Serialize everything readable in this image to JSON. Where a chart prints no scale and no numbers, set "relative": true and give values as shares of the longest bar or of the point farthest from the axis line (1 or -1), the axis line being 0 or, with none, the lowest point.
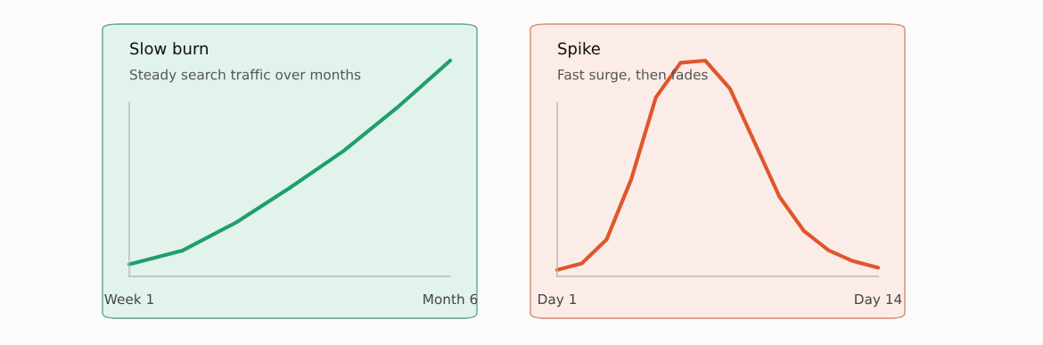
{
  "chart_data": [
    {
      "type": "line",
      "title": "Slow burn",
      "subtitle": "Steady search traffic over months",
      "relative": true,
      "tick_labels": "x",
      "grid": false,
      "legend": false,
      "categories": [
        "Week 1",
        null,
        null,
        null,
        null,
        null,
        "Month 6"
      ],
      "series": [
        {
          "color": "#1f9e6e",
          "values": [
            0.056,
            0.12,
            0.25,
            0.41,
            0.58,
            0.78,
            1.0
          ]
        }
      ]
    },
    {
      "type": "line",
      "title": "Spike",
      "subtitle": "Fast surge, then fades",
      "relative": true,
      "tick_labels": "x",
      "grid": false,
      "legend": false,
      "categories": [
        "Day 1",
        null,
        null,
        null,
        null,
        null,
        null,
        null,
        null,
        null,
        null,
        null,
        null,
        "Day 14"
      ],
      "series": [
        {
          "color": "#e0562c",
          "values": [
            0.03,
            0.06,
            0.17,
            0.45,
            0.83,
            0.99,
            1.0,
            0.87,
            0.62,
            0.37,
            0.21,
            0.12,
            0.07,
            0.04
          ]
        }
      ]
    }
  ]
}
